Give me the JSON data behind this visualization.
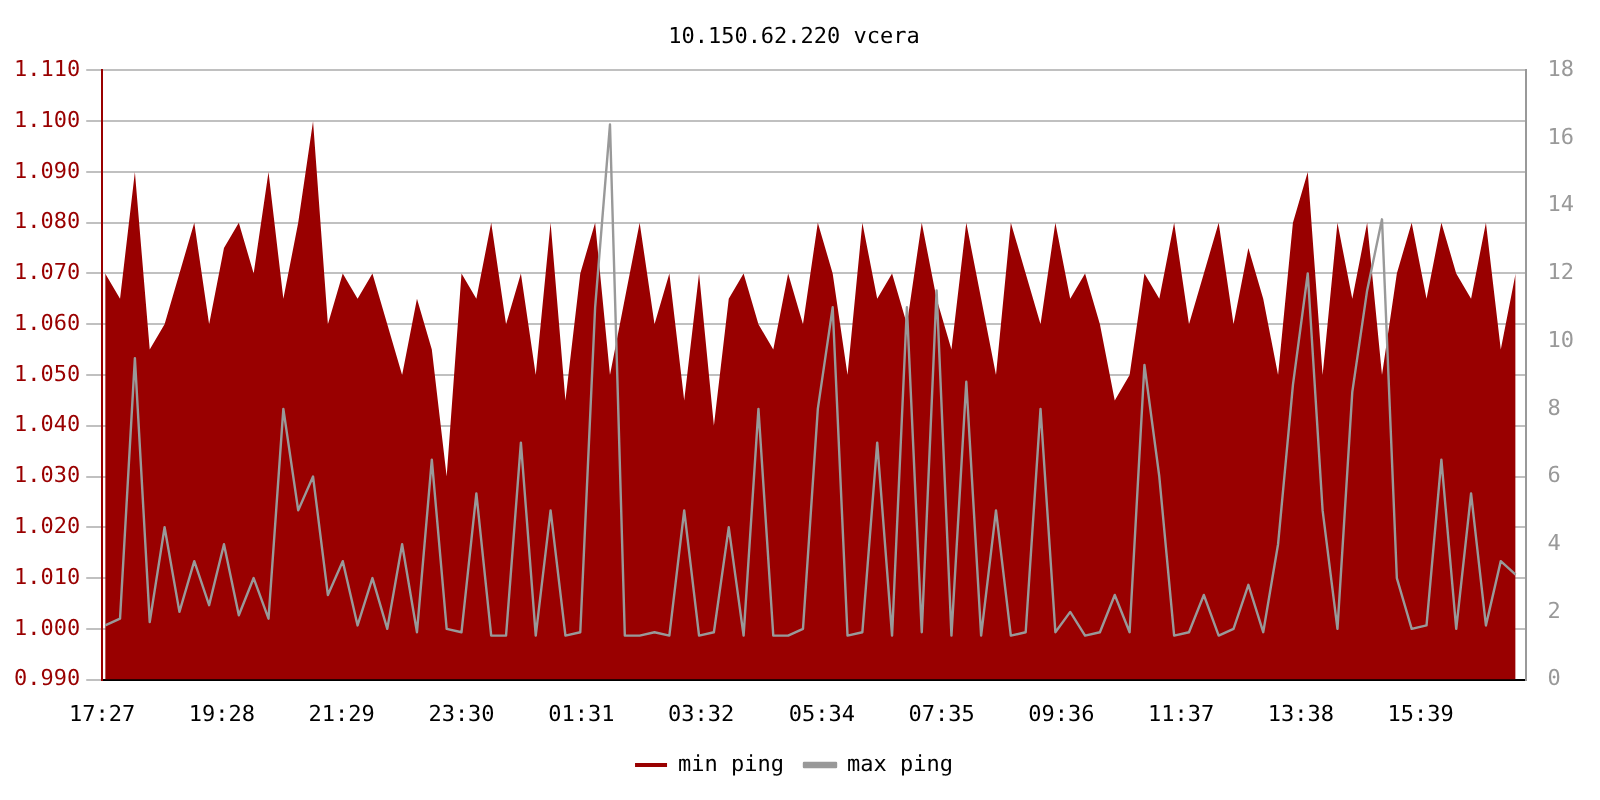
{
  "chart_data": {
    "type": "area",
    "title": "10.150.62.220 vcera",
    "legend": "bottom",
    "grid": "y",
    "marker": "none",
    "x": [
      "--01-01T17:30",
      "--01-01T17:45",
      "--01-01T18:00",
      "--01-01T18:15",
      "--01-01T18:30",
      "--01-01T18:45",
      "--01-01T19:00",
      "--01-01T19:15",
      "--01-01T19:30",
      "--01-01T19:45",
      "--01-01T20:00",
      "--01-01T20:15",
      "--01-01T20:30",
      "--01-01T20:45",
      "--01-01T21:00",
      "--01-01T21:15",
      "--01-01T21:30",
      "--01-01T21:45",
      "--01-01T22:00",
      "--01-01T22:15",
      "--01-01T22:30",
      "--01-01T22:45",
      "--01-01T23:00",
      "--01-01T23:15",
      "--01-01T23:30",
      "--01-01T23:45",
      "--01-02T00:00",
      "--01-02T00:15",
      "--01-02T00:30",
      "--01-02T00:45",
      "--01-02T01:00",
      "--01-02T01:15",
      "--01-02T01:30",
      "--01-02T01:45",
      "--01-02T02:00",
      "--01-02T02:15",
      "--01-02T02:30",
      "--01-02T02:45",
      "--01-02T03:00",
      "--01-02T03:15",
      "--01-02T03:30",
      "--01-02T03:45",
      "--01-02T04:00",
      "--01-02T04:15",
      "--01-02T04:30",
      "--01-02T04:45",
      "--01-02T05:00",
      "--01-02T05:15",
      "--01-02T05:30",
      "--01-02T05:45",
      "--01-02T06:00",
      "--01-02T06:15",
      "--01-02T06:30",
      "--01-02T06:45",
      "--01-02T07:00",
      "--01-02T07:15",
      "--01-02T07:30",
      "--01-02T07:45",
      "--01-02T08:00",
      "--01-02T08:15",
      "--01-02T08:30",
      "--01-02T08:45",
      "--01-02T09:00",
      "--01-02T09:15",
      "--01-02T09:30",
      "--01-02T09:45",
      "--01-02T10:00",
      "--01-02T10:15",
      "--01-02T10:30",
      "--01-02T10:45",
      "--01-02T11:00",
      "--01-02T11:15",
      "--01-02T11:30",
      "--01-02T11:45",
      "--01-02T12:00",
      "--01-02T12:15",
      "--01-02T12:30",
      "--01-02T12:45",
      "--01-02T13:00",
      "--01-02T13:15",
      "--01-02T13:30",
      "--01-02T13:45",
      "--01-02T14:00",
      "--01-02T14:15",
      "--01-02T14:30",
      "--01-02T14:45",
      "--01-02T15:00",
      "--01-02T15:15",
      "--01-02T15:30",
      "--01-02T15:45",
      "--01-02T16:00",
      "--01-02T16:15",
      "--01-02T16:30",
      "--01-02T16:45",
      "--01-02T17:00",
      "--01-02T17:15"
    ],
    "xlim": [
      "--01-01T17:27",
      "--01-02T17:25"
    ],
    "xticks": [
      {
        "value": "--01-01T17:27",
        "label": "17:27"
      },
      {
        "value": "--01-01T19:28",
        "label": "19:28"
      },
      {
        "value": "--01-01T21:29",
        "label": "21:29"
      },
      {
        "value": "--01-01T23:30",
        "label": "23:30"
      },
      {
        "value": "--01-02T01:31",
        "label": "01:31"
      },
      {
        "value": "--01-02T03:32",
        "label": "03:32"
      },
      {
        "value": "--01-02T05:34",
        "label": "05:34"
      },
      {
        "value": "--01-02T07:35",
        "label": "07:35"
      },
      {
        "value": "--01-02T09:36",
        "label": "09:36"
      },
      {
        "value": "--01-02T11:37",
        "label": "11:37"
      },
      {
        "value": "--01-02T13:38",
        "label": "13:38"
      },
      {
        "value": "--01-02T15:39",
        "label": "15:39"
      }
    ],
    "ylim": [
      0.99,
      1.11
    ],
    "yticks": [
      {
        "value": 0.99,
        "label": "0.990"
      },
      {
        "value": 1,
        "label": "1.000"
      },
      {
        "value": 1.01,
        "label": "1.010"
      },
      {
        "value": 1.02,
        "label": "1.020"
      },
      {
        "value": 1.03,
        "label": "1.030"
      },
      {
        "value": 1.04,
        "label": "1.040"
      },
      {
        "value": 1.05,
        "label": "1.050"
      },
      {
        "value": 1.06,
        "label": "1.060"
      },
      {
        "value": 1.07,
        "label": "1.070"
      },
      {
        "value": 1.08,
        "label": "1.080"
      },
      {
        "value": 1.09,
        "label": "1.090"
      },
      {
        "value": 1.1,
        "label": "1.100"
      },
      {
        "value": 1.11,
        "label": "1.110"
      }
    ],
    "y2lim": [
      0,
      18
    ],
    "y2ticks": [
      0,
      2,
      4,
      6,
      8,
      10,
      12,
      14,
      16,
      18
    ],
    "series": [
      {
        "name": "min ping",
        "axis": "y",
        "color": "#990000",
        "values": [
          1.07,
          1.065,
          1.09,
          1.055,
          1.06,
          1.07,
          1.08,
          1.06,
          1.075,
          1.08,
          1.07,
          1.09,
          1.065,
          1.08,
          1.1,
          1.06,
          1.07,
          1.065,
          1.07,
          1.06,
          1.05,
          1.065,
          1.055,
          1.03,
          1.07,
          1.065,
          1.08,
          1.06,
          1.07,
          1.05,
          1.08,
          1.045,
          1.07,
          1.08,
          1.05,
          1.065,
          1.08,
          1.06,
          1.07,
          1.045,
          1.07,
          1.04,
          1.065,
          1.07,
          1.06,
          1.055,
          1.07,
          1.06,
          1.08,
          1.07,
          1.05,
          1.08,
          1.065,
          1.07,
          1.06,
          1.08,
          1.065,
          1.055,
          1.08,
          1.065,
          1.05,
          1.08,
          1.07,
          1.06,
          1.08,
          1.065,
          1.07,
          1.06,
          1.045,
          1.05,
          1.07,
          1.065,
          1.08,
          1.06,
          1.07,
          1.08,
          1.06,
          1.075,
          1.065,
          1.05,
          1.08,
          1.09,
          1.05,
          1.08,
          1.065,
          1.08,
          1.05,
          1.07,
          1.08,
          1.065,
          1.08,
          1.07,
          1.065,
          1.08,
          1.055,
          1.07
        ]
      },
      {
        "name": "max ping",
        "type": "line",
        "axis": "y2",
        "color": "#999999",
        "values": [
          1.6,
          1.8,
          9.5,
          1.7,
          4.5,
          2,
          3.5,
          2.2,
          4,
          1.9,
          3,
          1.8,
          8,
          5,
          6,
          2.5,
          3.5,
          1.6,
          3,
          1.5,
          4,
          1.4,
          6.5,
          1.5,
          1.4,
          5.5,
          1.3,
          1.3,
          7,
          1.3,
          5,
          1.3,
          1.4,
          11,
          16.4,
          1.3,
          1.3,
          1.4,
          1.3,
          5,
          1.3,
          1.4,
          4.5,
          1.3,
          8,
          1.3,
          1.3,
          1.5,
          8,
          11,
          1.3,
          1.4,
          7,
          1.3,
          11,
          1.4,
          11.5,
          1.3,
          8.8,
          1.3,
          5,
          1.3,
          1.4,
          8,
          1.4,
          2,
          1.3,
          1.4,
          2.5,
          1.4,
          9.3,
          6,
          1.3,
          1.4,
          2.5,
          1.3,
          1.5,
          2.8,
          1.4,
          4,
          8.7,
          12,
          5,
          1.5,
          8.5,
          11.5,
          13.6,
          3,
          1.5,
          1.6,
          6.5,
          1.5,
          5.5,
          1.6,
          3.5,
          3.1
        ]
      }
    ]
  }
}
